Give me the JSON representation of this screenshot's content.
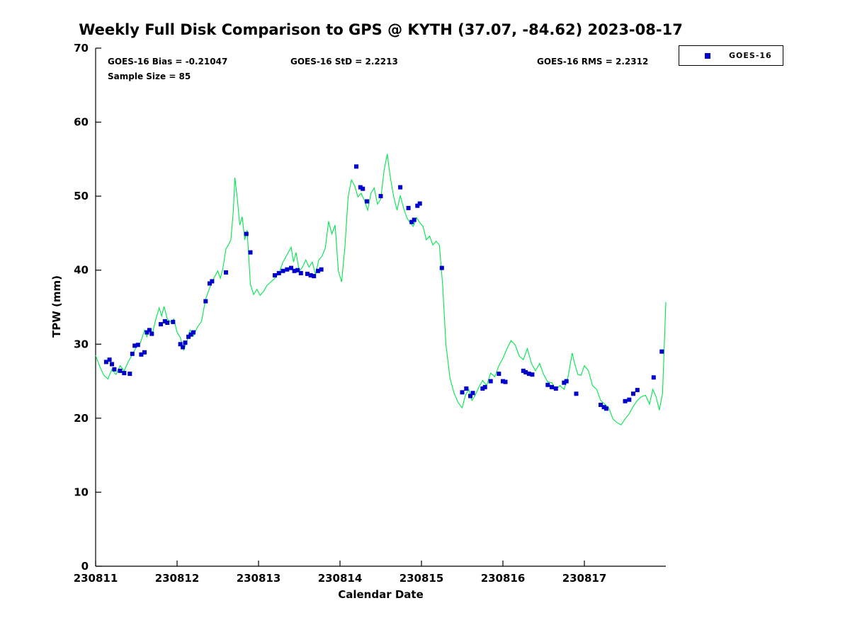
{
  "title": "Weekly Full Disk Comparison to GPS @ KYTH (37.07, -84.62) 2023-08-17",
  "stats": {
    "bias": "GOES-16 Bias = -0.21047",
    "std": "GOES-16 StD = 2.2213",
    "rms": "GOES-16 RMS = 2.2312",
    "sample": "Sample Size = 85"
  },
  "legend": {
    "position": "top-right",
    "items": [
      {
        "label": "GOES-16",
        "color": "#0000cc",
        "marker": "square"
      }
    ]
  },
  "axes": {
    "xlabel": "Calendar Date",
    "ylabel": "TPW (mm)"
  },
  "chart_data": {
    "type": "line+scatter",
    "title": "Weekly Full Disk Comparison to GPS @ KYTH (37.07, -84.62) 2023-08-17",
    "xlabel": "Calendar Date",
    "ylabel": "TPW (mm)",
    "x_unit": "days since 230811",
    "xlim": [
      0,
      7
    ],
    "ylim": [
      0,
      70
    ],
    "yticks": [
      0,
      10,
      20,
      30,
      40,
      50,
      60,
      70
    ],
    "xticks": [
      {
        "pos": 0,
        "label": "230811"
      },
      {
        "pos": 1,
        "label": "230812"
      },
      {
        "pos": 2,
        "label": "230813"
      },
      {
        "pos": 3,
        "label": "230814"
      },
      {
        "pos": 4,
        "label": "230815"
      },
      {
        "pos": 5,
        "label": "230816"
      },
      {
        "pos": 6,
        "label": "230817"
      }
    ],
    "grid": false,
    "legend_position": "top-right",
    "series": [
      {
        "name": "GPS",
        "type": "line",
        "color": "#00e64d",
        "points": [
          [
            0.0,
            28.5
          ],
          [
            0.05,
            27.0
          ],
          [
            0.1,
            25.8
          ],
          [
            0.15,
            25.3
          ],
          [
            0.2,
            26.6
          ],
          [
            0.25,
            25.9
          ],
          [
            0.3,
            27.1
          ],
          [
            0.35,
            26.4
          ],
          [
            0.4,
            27.6
          ],
          [
            0.45,
            28.6
          ],
          [
            0.5,
            29.6
          ],
          [
            0.55,
            30.2
          ],
          [
            0.6,
            31.9
          ],
          [
            0.63,
            31.0
          ],
          [
            0.66,
            32.1
          ],
          [
            0.7,
            31.6
          ],
          [
            0.74,
            33.4
          ],
          [
            0.78,
            34.9
          ],
          [
            0.81,
            33.8
          ],
          [
            0.84,
            35.1
          ],
          [
            0.88,
            33.4
          ],
          [
            0.92,
            33.0
          ],
          [
            0.96,
            33.4
          ],
          [
            1.0,
            31.6
          ],
          [
            1.04,
            30.9
          ],
          [
            1.08,
            29.2
          ],
          [
            1.12,
            30.4
          ],
          [
            1.16,
            31.9
          ],
          [
            1.2,
            31.1
          ],
          [
            1.25,
            32.3
          ],
          [
            1.3,
            33.1
          ],
          [
            1.35,
            36.1
          ],
          [
            1.4,
            37.6
          ],
          [
            1.45,
            38.9
          ],
          [
            1.5,
            39.9
          ],
          [
            1.53,
            38.9
          ],
          [
            1.56,
            40.1
          ],
          [
            1.6,
            42.9
          ],
          [
            1.63,
            43.4
          ],
          [
            1.66,
            44.1
          ],
          [
            1.69,
            48.0
          ],
          [
            1.71,
            52.5
          ],
          [
            1.74,
            49.6
          ],
          [
            1.77,
            46.1
          ],
          [
            1.8,
            47.2
          ],
          [
            1.83,
            44.1
          ],
          [
            1.86,
            45.4
          ],
          [
            1.9,
            38.1
          ],
          [
            1.94,
            36.7
          ],
          [
            1.98,
            37.4
          ],
          [
            2.02,
            36.6
          ],
          [
            2.06,
            37.1
          ],
          [
            2.1,
            37.9
          ],
          [
            2.15,
            38.4
          ],
          [
            2.2,
            38.9
          ],
          [
            2.25,
            39.6
          ],
          [
            2.3,
            41.1
          ],
          [
            2.35,
            42.1
          ],
          [
            2.4,
            43.1
          ],
          [
            2.43,
            41.1
          ],
          [
            2.46,
            42.4
          ],
          [
            2.5,
            39.9
          ],
          [
            2.54,
            40.4
          ],
          [
            2.58,
            41.4
          ],
          [
            2.62,
            40.4
          ],
          [
            2.66,
            41.1
          ],
          [
            2.7,
            39.4
          ],
          [
            2.74,
            41.4
          ],
          [
            2.78,
            41.9
          ],
          [
            2.82,
            43.0
          ],
          [
            2.86,
            46.6
          ],
          [
            2.9,
            44.9
          ],
          [
            2.94,
            46.1
          ],
          [
            2.98,
            39.9
          ],
          [
            3.02,
            38.4
          ],
          [
            3.06,
            43.1
          ],
          [
            3.1,
            49.9
          ],
          [
            3.14,
            52.2
          ],
          [
            3.18,
            51.4
          ],
          [
            3.22,
            49.9
          ],
          [
            3.26,
            50.4
          ],
          [
            3.3,
            49.4
          ],
          [
            3.34,
            48.1
          ],
          [
            3.38,
            50.4
          ],
          [
            3.42,
            51.1
          ],
          [
            3.46,
            48.9
          ],
          [
            3.5,
            49.6
          ],
          [
            3.54,
            53.4
          ],
          [
            3.58,
            55.7
          ],
          [
            3.62,
            52.4
          ],
          [
            3.66,
            49.9
          ],
          [
            3.7,
            48.1
          ],
          [
            3.74,
            50.1
          ],
          [
            3.78,
            48.4
          ],
          [
            3.82,
            47.1
          ],
          [
            3.86,
            46.4
          ],
          [
            3.9,
            45.9
          ],
          [
            3.94,
            47.1
          ],
          [
            3.98,
            46.4
          ],
          [
            4.02,
            45.9
          ],
          [
            4.06,
            44.1
          ],
          [
            4.1,
            44.6
          ],
          [
            4.14,
            43.4
          ],
          [
            4.18,
            43.9
          ],
          [
            4.22,
            43.4
          ],
          [
            4.26,
            38.0
          ],
          [
            4.3,
            30.0
          ],
          [
            4.35,
            25.4
          ],
          [
            4.4,
            23.4
          ],
          [
            4.45,
            22.1
          ],
          [
            4.5,
            21.4
          ],
          [
            4.54,
            23.1
          ],
          [
            4.58,
            23.9
          ],
          [
            4.62,
            22.4
          ],
          [
            4.66,
            23.1
          ],
          [
            4.7,
            24.1
          ],
          [
            4.75,
            25.1
          ],
          [
            4.8,
            24.4
          ],
          [
            4.85,
            26.1
          ],
          [
            4.9,
            25.6
          ],
          [
            4.95,
            27.1
          ],
          [
            5.0,
            28.1
          ],
          [
            5.05,
            29.4
          ],
          [
            5.1,
            30.5
          ],
          [
            5.15,
            29.9
          ],
          [
            5.2,
            28.4
          ],
          [
            5.25,
            27.9
          ],
          [
            5.3,
            29.4
          ],
          [
            5.35,
            27.4
          ],
          [
            5.4,
            26.4
          ],
          [
            5.45,
            27.4
          ],
          [
            5.5,
            25.9
          ],
          [
            5.55,
            24.9
          ],
          [
            5.6,
            24.8
          ],
          [
            5.65,
            23.9
          ],
          [
            5.7,
            24.4
          ],
          [
            5.75,
            23.9
          ],
          [
            5.8,
            25.6
          ],
          [
            5.85,
            28.8
          ],
          [
            5.88,
            27.4
          ],
          [
            5.92,
            25.9
          ],
          [
            5.96,
            25.8
          ],
          [
            6.0,
            27.1
          ],
          [
            6.05,
            26.4
          ],
          [
            6.1,
            24.4
          ],
          [
            6.15,
            23.9
          ],
          [
            6.2,
            22.4
          ],
          [
            6.25,
            21.9
          ],
          [
            6.3,
            21.4
          ],
          [
            6.35,
            19.9
          ],
          [
            6.4,
            19.4
          ],
          [
            6.45,
            19.1
          ],
          [
            6.5,
            19.9
          ],
          [
            6.55,
            20.6
          ],
          [
            6.6,
            21.6
          ],
          [
            6.65,
            22.4
          ],
          [
            6.7,
            22.9
          ],
          [
            6.75,
            23.1
          ],
          [
            6.8,
            21.9
          ],
          [
            6.84,
            23.9
          ],
          [
            6.88,
            22.9
          ],
          [
            6.92,
            21.1
          ],
          [
            6.96,
            23.4
          ],
          [
            7.0,
            35.7
          ]
        ]
      },
      {
        "name": "GOES-16",
        "type": "scatter",
        "marker": "square",
        "size": 6,
        "color": "#0000cc",
        "points": [
          [
            0.13,
            27.6
          ],
          [
            0.17,
            27.9
          ],
          [
            0.2,
            27.3
          ],
          [
            0.23,
            26.6
          ],
          [
            0.3,
            26.4
          ],
          [
            0.35,
            26.1
          ],
          [
            0.42,
            26.0
          ],
          [
            0.45,
            28.7
          ],
          [
            0.48,
            29.8
          ],
          [
            0.52,
            29.9
          ],
          [
            0.56,
            28.6
          ],
          [
            0.6,
            28.9
          ],
          [
            0.63,
            31.6
          ],
          [
            0.66,
            31.9
          ],
          [
            0.69,
            31.4
          ],
          [
            0.8,
            32.7
          ],
          [
            0.85,
            33.1
          ],
          [
            0.88,
            32.9
          ],
          [
            0.95,
            33.0
          ],
          [
            1.04,
            30.0
          ],
          [
            1.07,
            29.6
          ],
          [
            1.1,
            30.2
          ],
          [
            1.14,
            31.0
          ],
          [
            1.17,
            31.3
          ],
          [
            1.2,
            31.6
          ],
          [
            1.35,
            35.8
          ],
          [
            1.4,
            38.2
          ],
          [
            1.43,
            38.5
          ],
          [
            1.6,
            39.7
          ],
          [
            1.85,
            44.9
          ],
          [
            1.9,
            42.4
          ],
          [
            2.2,
            39.3
          ],
          [
            2.25,
            39.6
          ],
          [
            2.3,
            39.9
          ],
          [
            2.35,
            40.1
          ],
          [
            2.4,
            40.3
          ],
          [
            2.44,
            39.9
          ],
          [
            2.48,
            40.0
          ],
          [
            2.52,
            39.6
          ],
          [
            2.6,
            39.5
          ],
          [
            2.64,
            39.3
          ],
          [
            2.68,
            39.2
          ],
          [
            2.73,
            39.9
          ],
          [
            2.77,
            40.1
          ],
          [
            3.2,
            54.0
          ],
          [
            3.25,
            51.2
          ],
          [
            3.28,
            51.0
          ],
          [
            3.33,
            49.3
          ],
          [
            3.5,
            50.0
          ],
          [
            3.74,
            51.2
          ],
          [
            3.84,
            48.4
          ],
          [
            3.88,
            46.5
          ],
          [
            3.91,
            46.8
          ],
          [
            3.95,
            48.7
          ],
          [
            3.98,
            49.0
          ],
          [
            4.25,
            40.3
          ],
          [
            4.5,
            23.5
          ],
          [
            4.55,
            24.0
          ],
          [
            4.6,
            23.0
          ],
          [
            4.63,
            23.4
          ],
          [
            4.75,
            24.0
          ],
          [
            4.78,
            24.2
          ],
          [
            4.85,
            25.0
          ],
          [
            4.95,
            26.0
          ],
          [
            5.0,
            25.0
          ],
          [
            5.03,
            24.9
          ],
          [
            5.25,
            26.4
          ],
          [
            5.28,
            26.2
          ],
          [
            5.32,
            26.0
          ],
          [
            5.36,
            25.9
          ],
          [
            5.55,
            24.5
          ],
          [
            5.6,
            24.2
          ],
          [
            5.65,
            24.0
          ],
          [
            5.75,
            24.8
          ],
          [
            5.78,
            25.0
          ],
          [
            5.9,
            23.3
          ],
          [
            6.2,
            21.8
          ],
          [
            6.24,
            21.5
          ],
          [
            6.27,
            21.3
          ],
          [
            6.5,
            22.3
          ],
          [
            6.55,
            22.5
          ],
          [
            6.6,
            23.3
          ],
          [
            6.65,
            23.8
          ],
          [
            6.85,
            25.5
          ],
          [
            6.95,
            29.0
          ]
        ]
      }
    ]
  }
}
